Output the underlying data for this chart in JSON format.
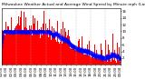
{
  "title": "Milwaukee Weather Actual and Average Wind Speed by Minute mph (Last 24 Hours)",
  "background_color": "#ffffff",
  "plot_background": "#ffffff",
  "bar_color": "#ff0000",
  "avg_color": "#0000ff",
  "grid_color": "#b0b0b0",
  "n_minutes": 1440,
  "y_max": 17,
  "y_ticks": [
    2,
    4,
    6,
    8,
    10,
    12,
    14,
    16
  ],
  "n_dashed_lines": 7,
  "title_fontsize": 3.2,
  "tick_fontsize": 2.8,
  "title_color": "#000000"
}
